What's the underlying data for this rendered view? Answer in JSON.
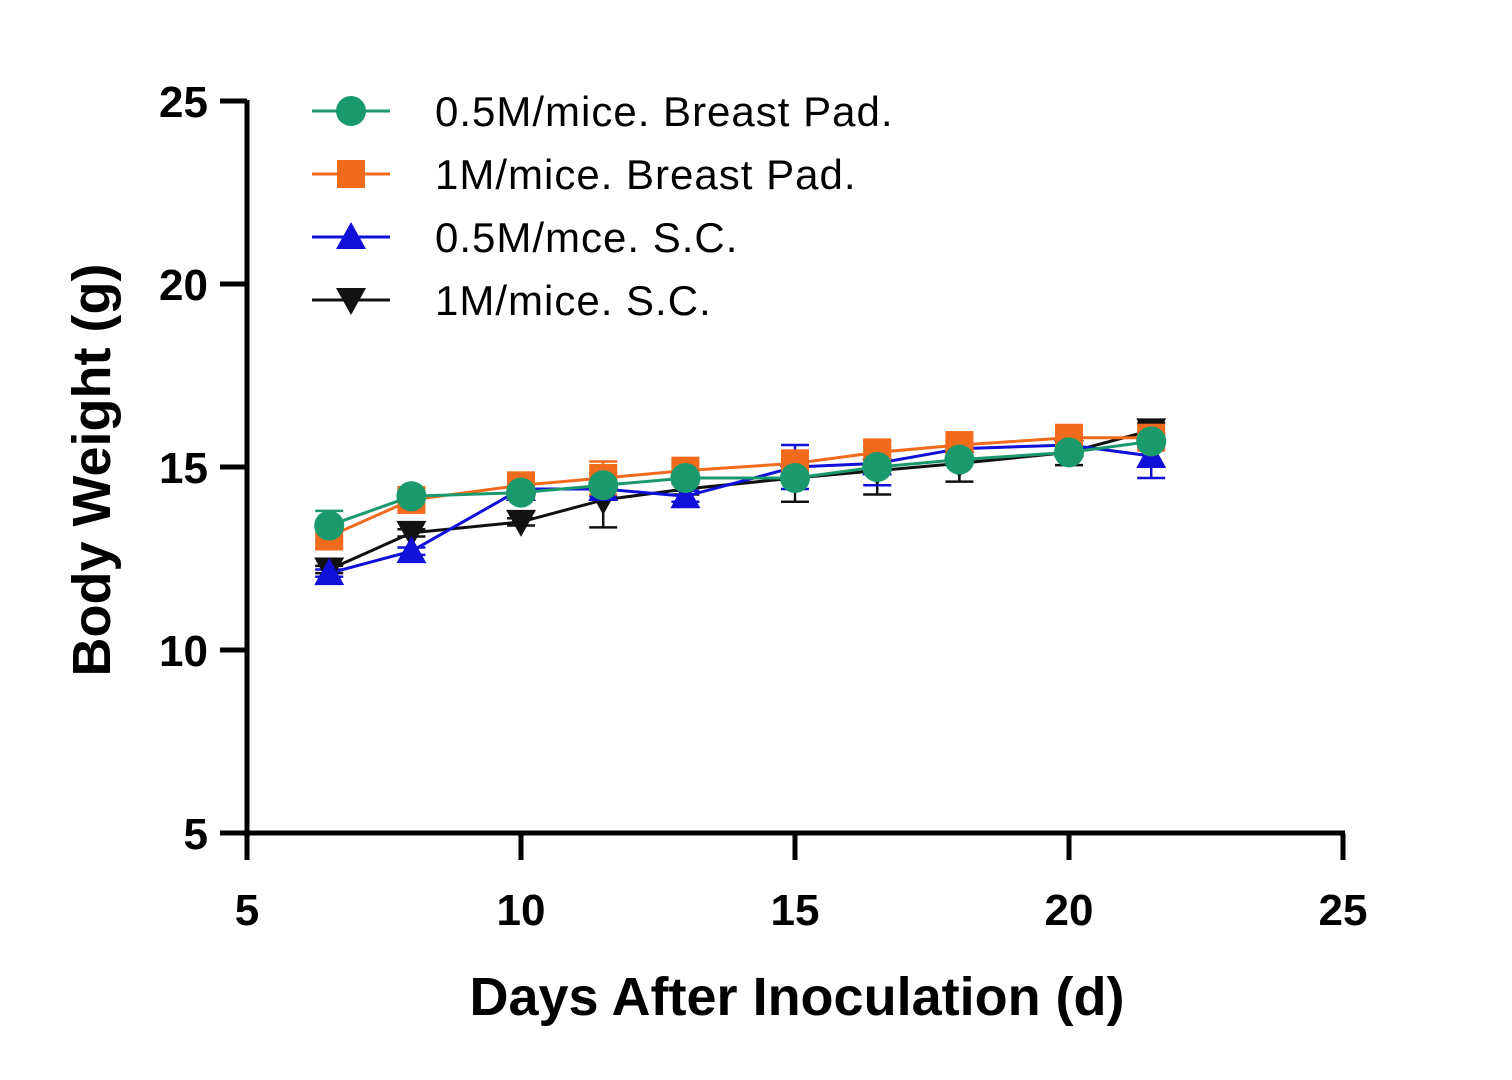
{
  "chart_data": {
    "type": "line",
    "title": "",
    "xlabel": "Days After Inoculation (d)",
    "ylabel": "Body Weight (g)",
    "xlim": [
      5,
      25
    ],
    "ylim": [
      5,
      25
    ],
    "xticks": [
      "5",
      "10",
      "15",
      "20",
      "25"
    ],
    "yticks": [
      "5",
      "10",
      "15",
      "20",
      "25"
    ],
    "legend_position": "top-left",
    "series": [
      {
        "name": "0.5M/mice. Breast Pad.",
        "color": "#1a9a6c",
        "marker": "circle",
        "x": [
          6.5,
          8,
          10,
          11.5,
          13,
          15,
          16.5,
          18,
          20,
          21.5
        ],
        "y": [
          13.4,
          14.2,
          14.3,
          14.5,
          14.7,
          14.7,
          15.0,
          15.2,
          15.4,
          15.7
        ],
        "err": [
          0.4,
          0.1,
          0.1,
          0.15,
          0.1,
          0.1,
          0.1,
          0.1,
          0.1,
          0.1
        ]
      },
      {
        "name": "1M/mice. Breast Pad.",
        "color": "#f26b1d",
        "marker": "square",
        "x": [
          6.5,
          8,
          10,
          11.5,
          13,
          15,
          16.5,
          18,
          20,
          21.5
        ],
        "y": [
          13.1,
          14.1,
          14.5,
          14.7,
          14.9,
          15.1,
          15.4,
          15.6,
          15.8,
          15.8
        ],
        "err": [
          0.3,
          0.2,
          0.15,
          0.45,
          0.15,
          0.1,
          0.3,
          0.1,
          0.1,
          0.1
        ]
      },
      {
        "name": "0.5M/mce. S.C.",
        "color": "#1010d8",
        "marker": "triangle-up",
        "x": [
          6.5,
          8,
          10,
          11.5,
          13,
          15,
          16.5,
          18,
          20,
          21.5
        ],
        "y": [
          12.1,
          12.7,
          14.4,
          14.4,
          14.2,
          15.0,
          15.1,
          15.5,
          15.6,
          15.3
        ],
        "err": [
          0.1,
          0.1,
          0.1,
          0.2,
          0.15,
          0.6,
          0.6,
          0.1,
          0.1,
          0.6
        ]
      },
      {
        "name": "1M/mice. S.C.",
        "color": "#111111",
        "marker": "triangle-down",
        "x": [
          6.5,
          8,
          10,
          11.5,
          13,
          15,
          16.5,
          18,
          20,
          21.5
        ],
        "y": [
          12.2,
          13.2,
          13.5,
          14.1,
          14.4,
          14.7,
          14.9,
          15.1,
          15.4,
          16.0
        ],
        "err": [
          0.1,
          0.1,
          0.1,
          0.75,
          0.15,
          0.65,
          0.65,
          0.5,
          0.35,
          0.2
        ]
      }
    ]
  }
}
